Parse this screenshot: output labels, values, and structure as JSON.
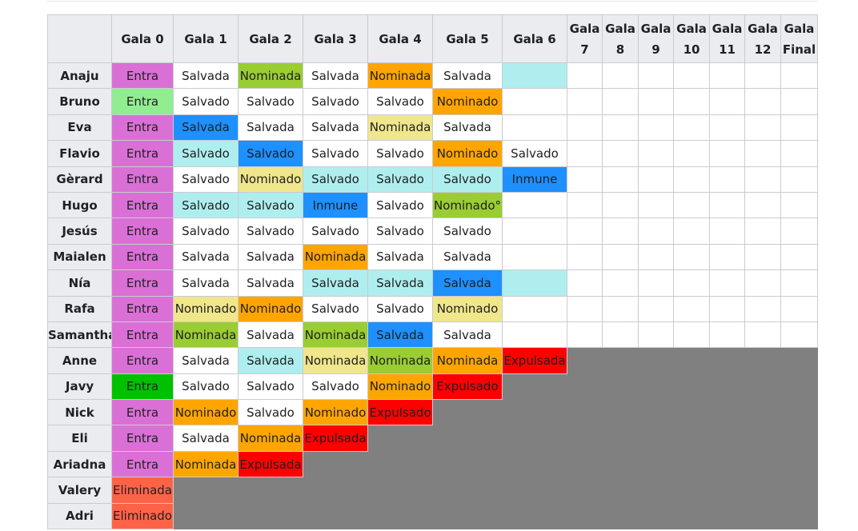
{
  "table": {
    "header": [
      null,
      "Gala 0",
      "Gala 1",
      "Gala 2",
      "Gala 3",
      "Gala 4",
      "Gala 5",
      "Gala 6",
      "Gala 7",
      "Gala 8",
      "Gala 9",
      "Gala 10",
      "Gala 11",
      "Gala 12",
      "Gala Final"
    ],
    "header_color": "#eaecf0",
    "rows": [
      {
        "name": "Anaju",
        "cells": [
          [
            "Entra",
            "#da70d6"
          ],
          [
            "Salvada",
            "#ffffff"
          ],
          [
            "Nominada",
            "#9acd32"
          ],
          [
            "Salvada",
            "#ffffff"
          ],
          [
            "Nominada",
            "#ffa500"
          ],
          [
            "Salvada",
            "#ffffff"
          ],
          [
            null,
            "#afeeee"
          ],
          [
            null,
            "#ffffff"
          ],
          [
            null,
            "#ffffff"
          ],
          [
            null,
            "#ffffff"
          ],
          [
            null,
            "#ffffff"
          ],
          [
            null,
            "#ffffff"
          ],
          [
            null,
            "#ffffff"
          ],
          [
            null,
            "#ffffff"
          ]
        ]
      },
      {
        "name": "Bruno",
        "cells": [
          [
            "Entra",
            "#90ee90"
          ],
          [
            "Salvado",
            "#ffffff"
          ],
          [
            "Salvado",
            "#ffffff"
          ],
          [
            "Salvado",
            "#ffffff"
          ],
          [
            "Salvado",
            "#ffffff"
          ],
          [
            "Nominado",
            "#ffa500"
          ],
          [
            null,
            "#ffffff"
          ],
          [
            null,
            "#ffffff"
          ],
          [
            null,
            "#ffffff"
          ],
          [
            null,
            "#ffffff"
          ],
          [
            null,
            "#ffffff"
          ],
          [
            null,
            "#ffffff"
          ],
          [
            null,
            "#ffffff"
          ],
          [
            null,
            "#ffffff"
          ]
        ]
      },
      {
        "name": "Eva",
        "cells": [
          [
            "Entra",
            "#da70d6"
          ],
          [
            "Salvada",
            "#1e90ff"
          ],
          [
            "Salvada",
            "#ffffff"
          ],
          [
            "Salvada",
            "#ffffff"
          ],
          [
            "Nominada",
            "#f0e68c"
          ],
          [
            "Salvada",
            "#ffffff"
          ],
          [
            null,
            "#ffffff"
          ],
          [
            null,
            "#ffffff"
          ],
          [
            null,
            "#ffffff"
          ],
          [
            null,
            "#ffffff"
          ],
          [
            null,
            "#ffffff"
          ],
          [
            null,
            "#ffffff"
          ],
          [
            null,
            "#ffffff"
          ],
          [
            null,
            "#ffffff"
          ]
        ]
      },
      {
        "name": "Flavio",
        "cells": [
          [
            "Entra",
            "#da70d6"
          ],
          [
            "Salvado",
            "#afeeee"
          ],
          [
            "Salvado",
            "#1e90ff"
          ],
          [
            "Salvado",
            "#ffffff"
          ],
          [
            "Salvado",
            "#ffffff"
          ],
          [
            "Nominado",
            "#ffa500"
          ],
          [
            "Salvado",
            "#ffffff"
          ],
          [
            null,
            "#ffffff"
          ],
          [
            null,
            "#ffffff"
          ],
          [
            null,
            "#ffffff"
          ],
          [
            null,
            "#ffffff"
          ],
          [
            null,
            "#ffffff"
          ],
          [
            null,
            "#ffffff"
          ],
          [
            null,
            "#ffffff"
          ]
        ]
      },
      {
        "name": "Gèrard",
        "cells": [
          [
            "Entra",
            "#da70d6"
          ],
          [
            "Salvado",
            "#ffffff"
          ],
          [
            "Nominado",
            "#f0e68c"
          ],
          [
            "Salvado",
            "#afeeee"
          ],
          [
            "Salvado",
            "#afeeee"
          ],
          [
            "Salvado",
            "#afeeee"
          ],
          [
            "Inmune",
            "#1e90ff"
          ],
          [
            null,
            "#ffffff"
          ],
          [
            null,
            "#ffffff"
          ],
          [
            null,
            "#ffffff"
          ],
          [
            null,
            "#ffffff"
          ],
          [
            null,
            "#ffffff"
          ],
          [
            null,
            "#ffffff"
          ],
          [
            null,
            "#ffffff"
          ]
        ]
      },
      {
        "name": "Hugo",
        "cells": [
          [
            "Entra",
            "#da70d6"
          ],
          [
            "Salvado",
            "#afeeee"
          ],
          [
            "Salvado",
            "#afeeee"
          ],
          [
            "Inmune",
            "#1e90ff"
          ],
          [
            "Salvado",
            "#ffffff"
          ],
          [
            "Nominado°",
            "#9acd32"
          ],
          [
            null,
            "#ffffff"
          ],
          [
            null,
            "#ffffff"
          ],
          [
            null,
            "#ffffff"
          ],
          [
            null,
            "#ffffff"
          ],
          [
            null,
            "#ffffff"
          ],
          [
            null,
            "#ffffff"
          ],
          [
            null,
            "#ffffff"
          ],
          [
            null,
            "#ffffff"
          ]
        ]
      },
      {
        "name": "Jesús",
        "cells": [
          [
            "Entra",
            "#da70d6"
          ],
          [
            "Salvado",
            "#ffffff"
          ],
          [
            "Salvado",
            "#ffffff"
          ],
          [
            "Salvado",
            "#ffffff"
          ],
          [
            "Salvado",
            "#ffffff"
          ],
          [
            "Salvado",
            "#ffffff"
          ],
          [
            null,
            "#ffffff"
          ],
          [
            null,
            "#ffffff"
          ],
          [
            null,
            "#ffffff"
          ],
          [
            null,
            "#ffffff"
          ],
          [
            null,
            "#ffffff"
          ],
          [
            null,
            "#ffffff"
          ],
          [
            null,
            "#ffffff"
          ],
          [
            null,
            "#ffffff"
          ]
        ]
      },
      {
        "name": "Maialen",
        "cells": [
          [
            "Entra",
            "#da70d6"
          ],
          [
            "Salvada",
            "#ffffff"
          ],
          [
            "Salvada",
            "#ffffff"
          ],
          [
            "Nominada",
            "#ffa500"
          ],
          [
            "Salvada",
            "#ffffff"
          ],
          [
            "Salvada",
            "#ffffff"
          ],
          [
            null,
            "#ffffff"
          ],
          [
            null,
            "#ffffff"
          ],
          [
            null,
            "#ffffff"
          ],
          [
            null,
            "#ffffff"
          ],
          [
            null,
            "#ffffff"
          ],
          [
            null,
            "#ffffff"
          ],
          [
            null,
            "#ffffff"
          ],
          [
            null,
            "#ffffff"
          ]
        ]
      },
      {
        "name": "Nía",
        "cells": [
          [
            "Entra",
            "#da70d6"
          ],
          [
            "Salvada",
            "#ffffff"
          ],
          [
            "Salvada",
            "#ffffff"
          ],
          [
            "Salvada",
            "#afeeee"
          ],
          [
            "Salvada",
            "#afeeee"
          ],
          [
            "Salvada",
            "#1e90ff"
          ],
          [
            null,
            "#afeeee"
          ],
          [
            null,
            "#ffffff"
          ],
          [
            null,
            "#ffffff"
          ],
          [
            null,
            "#ffffff"
          ],
          [
            null,
            "#ffffff"
          ],
          [
            null,
            "#ffffff"
          ],
          [
            null,
            "#ffffff"
          ],
          [
            null,
            "#ffffff"
          ]
        ]
      },
      {
        "name": "Rafa",
        "cells": [
          [
            "Entra",
            "#da70d6"
          ],
          [
            "Nominado",
            "#f0e68c"
          ],
          [
            "Nominado",
            "#ffa500"
          ],
          [
            "Salvado",
            "#ffffff"
          ],
          [
            "Salvado",
            "#ffffff"
          ],
          [
            "Nominado",
            "#f0e68c"
          ],
          [
            null,
            "#ffffff"
          ],
          [
            null,
            "#ffffff"
          ],
          [
            null,
            "#ffffff"
          ],
          [
            null,
            "#ffffff"
          ],
          [
            null,
            "#ffffff"
          ],
          [
            null,
            "#ffffff"
          ],
          [
            null,
            "#ffffff"
          ],
          [
            null,
            "#ffffff"
          ]
        ]
      },
      {
        "name": "Samantha",
        "cells": [
          [
            "Entra",
            "#da70d6"
          ],
          [
            "Nominada",
            "#9acd32"
          ],
          [
            "Salvada",
            "#ffffff"
          ],
          [
            "Nominada",
            "#9acd32"
          ],
          [
            "Salvada",
            "#1e90ff"
          ],
          [
            "Salvada",
            "#ffffff"
          ],
          [
            null,
            "#ffffff"
          ],
          [
            null,
            "#ffffff"
          ],
          [
            null,
            "#ffffff"
          ],
          [
            null,
            "#ffffff"
          ],
          [
            null,
            "#ffffff"
          ],
          [
            null,
            "#ffffff"
          ],
          [
            null,
            "#ffffff"
          ],
          [
            null,
            "#ffffff"
          ]
        ]
      },
      {
        "name": "Anne",
        "cells": [
          [
            "Entra",
            "#da70d6"
          ],
          [
            "Salvada",
            "#ffffff"
          ],
          [
            "Salvada",
            "#afeeee"
          ],
          [
            "Nominada",
            "#f0e68c"
          ],
          [
            "Nominada",
            "#9acd32"
          ],
          [
            "Nominada",
            "#ffa500"
          ],
          [
            "Expulsada",
            "#ff0000"
          ],
          [
            null,
            "#808080"
          ],
          [
            null,
            "#808080"
          ],
          [
            null,
            "#808080"
          ],
          [
            null,
            "#808080"
          ],
          [
            null,
            "#808080"
          ],
          [
            null,
            "#808080"
          ],
          [
            null,
            "#808080"
          ]
        ]
      },
      {
        "name": "Javy",
        "cells": [
          [
            "Entra",
            "#00c000"
          ],
          [
            "Salvado",
            "#ffffff"
          ],
          [
            "Salvado",
            "#ffffff"
          ],
          [
            "Salvado",
            "#ffffff"
          ],
          [
            "Nominado",
            "#ffa500"
          ],
          [
            "Expulsado",
            "#ff0000"
          ],
          [
            null,
            "#808080"
          ],
          [
            null,
            "#808080"
          ],
          [
            null,
            "#808080"
          ],
          [
            null,
            "#808080"
          ],
          [
            null,
            "#808080"
          ],
          [
            null,
            "#808080"
          ],
          [
            null,
            "#808080"
          ],
          [
            null,
            "#808080"
          ]
        ]
      },
      {
        "name": "Nick",
        "cells": [
          [
            "Entra",
            "#da70d6"
          ],
          [
            "Nominado",
            "#ffa500"
          ],
          [
            "Salvado",
            "#ffffff"
          ],
          [
            "Nominado",
            "#ffa500"
          ],
          [
            "Expulsado",
            "#ff0000"
          ],
          [
            null,
            "#808080"
          ],
          [
            null,
            "#808080"
          ],
          [
            null,
            "#808080"
          ],
          [
            null,
            "#808080"
          ],
          [
            null,
            "#808080"
          ],
          [
            null,
            "#808080"
          ],
          [
            null,
            "#808080"
          ],
          [
            null,
            "#808080"
          ],
          [
            null,
            "#808080"
          ]
        ]
      },
      {
        "name": "Eli",
        "cells": [
          [
            "Entra",
            "#da70d6"
          ],
          [
            "Salvada",
            "#ffffff"
          ],
          [
            "Nominada",
            "#ffa500"
          ],
          [
            "Expulsada",
            "#ff0000"
          ],
          [
            null,
            "#808080"
          ],
          [
            null,
            "#808080"
          ],
          [
            null,
            "#808080"
          ],
          [
            null,
            "#808080"
          ],
          [
            null,
            "#808080"
          ],
          [
            null,
            "#808080"
          ],
          [
            null,
            "#808080"
          ],
          [
            null,
            "#808080"
          ],
          [
            null,
            "#808080"
          ],
          [
            null,
            "#808080"
          ]
        ]
      },
      {
        "name": "Ariadna",
        "cells": [
          [
            "Entra",
            "#da70d6"
          ],
          [
            "Nominada",
            "#ffa500"
          ],
          [
            "Expulsada",
            "#ff0000"
          ],
          [
            null,
            "#808080"
          ],
          [
            null,
            "#808080"
          ],
          [
            null,
            "#808080"
          ],
          [
            null,
            "#808080"
          ],
          [
            null,
            "#808080"
          ],
          [
            null,
            "#808080"
          ],
          [
            null,
            "#808080"
          ],
          [
            null,
            "#808080"
          ],
          [
            null,
            "#808080"
          ],
          [
            null,
            "#808080"
          ],
          [
            null,
            "#808080"
          ]
        ]
      },
      {
        "name": "Valery",
        "cells": [
          [
            "Eliminada",
            "#ff6347"
          ],
          [
            null,
            "#808080"
          ],
          [
            null,
            "#808080"
          ],
          [
            null,
            "#808080"
          ],
          [
            null,
            "#808080"
          ],
          [
            null,
            "#808080"
          ],
          [
            null,
            "#808080"
          ],
          [
            null,
            "#808080"
          ],
          [
            null,
            "#808080"
          ],
          [
            null,
            "#808080"
          ],
          [
            null,
            "#808080"
          ],
          [
            null,
            "#808080"
          ],
          [
            null,
            "#808080"
          ],
          [
            null,
            "#808080"
          ]
        ]
      },
      {
        "name": "Adri",
        "cells": [
          [
            "Eliminado",
            "#ff6347"
          ],
          [
            null,
            "#808080"
          ],
          [
            null,
            "#808080"
          ],
          [
            null,
            "#808080"
          ],
          [
            null,
            "#808080"
          ],
          [
            null,
            "#808080"
          ],
          [
            null,
            "#808080"
          ],
          [
            null,
            "#808080"
          ],
          [
            null,
            "#808080"
          ],
          [
            null,
            "#808080"
          ],
          [
            null,
            "#808080"
          ],
          [
            null,
            "#808080"
          ],
          [
            null,
            "#808080"
          ],
          [
            null,
            "#808080"
          ]
        ]
      }
    ]
  }
}
